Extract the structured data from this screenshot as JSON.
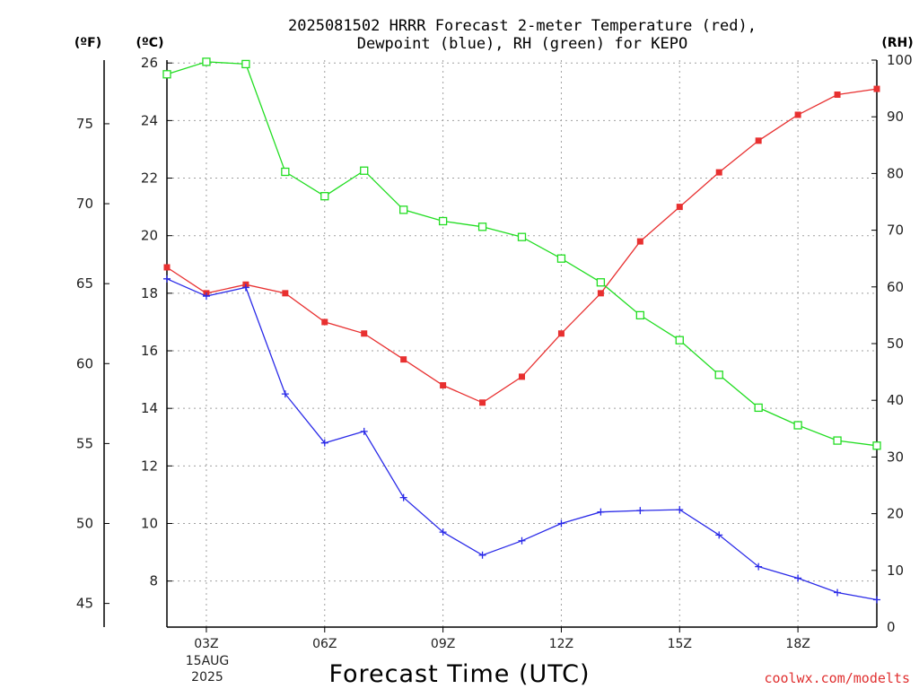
{
  "title": {
    "line1": "2025081502 HRRR Forecast 2-meter Temperature (red),",
    "line2": "Dewpoint (blue), RH (green) for KEPO"
  },
  "units": {
    "fahrenheit": "(ºF)",
    "celsius": "(ºC)",
    "rh": "(RH)"
  },
  "credit": "coolwx.com/modelts",
  "chart_data": {
    "type": "line",
    "xlabel": "Forecast Time (UTC)",
    "x_hours": [
      2,
      3,
      4,
      5,
      6,
      7,
      8,
      9,
      10,
      11,
      12,
      13,
      14,
      15,
      16,
      17,
      18,
      19,
      20
    ],
    "xlim": [
      2,
      20
    ],
    "x_ticks": [
      {
        "hour": 3,
        "label": "03Z"
      },
      {
        "hour": 6,
        "label": "06Z"
      },
      {
        "hour": 9,
        "label": "09Z"
      },
      {
        "hour": 12,
        "label": "12Z"
      },
      {
        "hour": 15,
        "label": "15Z"
      },
      {
        "hour": 18,
        "label": "18Z"
      }
    ],
    "date_label": {
      "line1": "15AUG",
      "line2": "2025"
    },
    "axes": {
      "celsius": {
        "ylim": [
          6.4,
          26.1
        ],
        "ticks": [
          8,
          10,
          12,
          14,
          16,
          18,
          20,
          22,
          24,
          26
        ]
      },
      "fahrenheit": {
        "ticks": [
          45,
          50,
          55,
          60,
          65,
          70,
          75
        ]
      },
      "rh": {
        "ylim": [
          0,
          100
        ],
        "ticks": [
          0,
          10,
          20,
          30,
          40,
          50,
          60,
          70,
          80,
          90,
          100
        ]
      }
    },
    "grid": true,
    "series": [
      {
        "key": "temperature",
        "axis": "celsius",
        "color": "#e83030",
        "marker": "square-filled",
        "values": [
          18.9,
          18.0,
          18.3,
          18.0,
          17.0,
          16.6,
          15.7,
          14.8,
          14.2,
          15.1,
          16.6,
          18.0,
          19.8,
          21.0,
          22.2,
          23.3,
          24.2,
          24.9,
          25.1
        ]
      },
      {
        "key": "dewpoint",
        "axis": "celsius",
        "color": "#2a2ae8",
        "marker": "plus",
        "values": [
          18.5,
          17.9,
          18.2,
          14.5,
          12.8,
          13.2,
          10.9,
          9.7,
          8.9,
          9.4,
          10.0,
          10.4,
          10.45,
          10.48,
          9.6,
          8.5,
          8.1,
          7.6,
          7.35
        ]
      },
      {
        "key": "rh",
        "axis": "rh",
        "color": "#22dd22",
        "marker": "square-open",
        "values": [
          97.5,
          99.7,
          99.3,
          80.3,
          76.0,
          80.5,
          73.6,
          71.6,
          70.6,
          68.8,
          65.0,
          60.8,
          55.0,
          50.6,
          44.5,
          38.7,
          35.6,
          32.9,
          32.0
        ]
      }
    ]
  }
}
